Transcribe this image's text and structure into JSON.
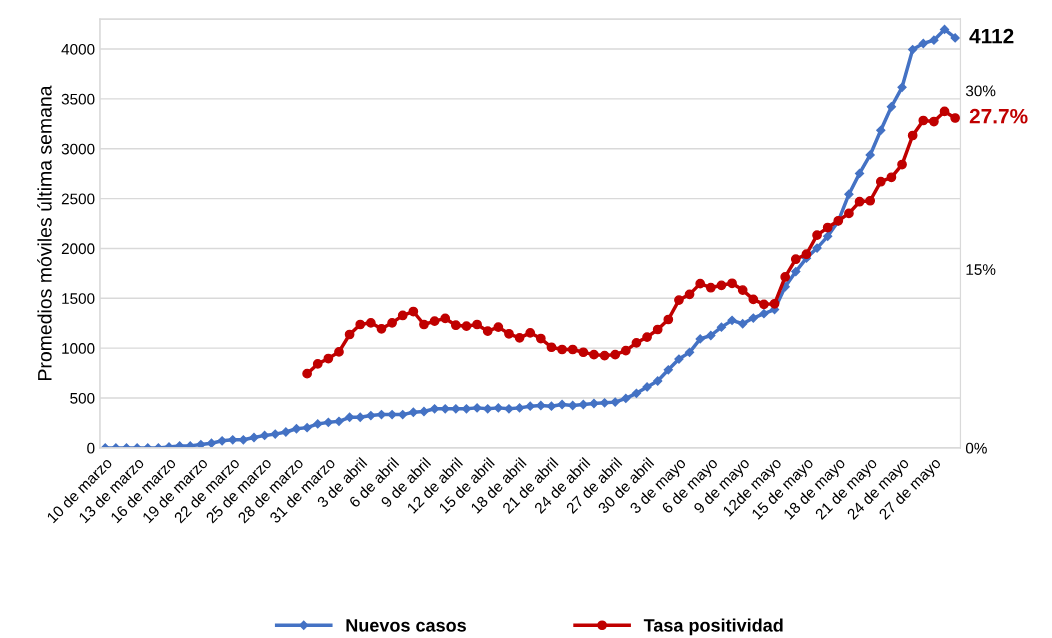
{
  "chart_data": {
    "type": "line",
    "ylabel": "Promedios móviles última semana",
    "categories": [
      "10 de marzo",
      null,
      null,
      "13 de marzo",
      null,
      null,
      "16 de marzo",
      null,
      null,
      "19 de marzo",
      null,
      null,
      "22 de marzo",
      null,
      null,
      "25 de marzo",
      null,
      null,
      "28 de marzo",
      null,
      null,
      "31 de marzo",
      null,
      null,
      "3 de abril",
      null,
      null,
      "6 de abril",
      null,
      null,
      "9 de abril",
      null,
      null,
      "12 de abril",
      null,
      null,
      "15 de abril",
      null,
      null,
      "18 de abril",
      null,
      null,
      "21 de abril",
      null,
      null,
      "24 de abril",
      null,
      null,
      "27 de abril",
      null,
      null,
      "30 de abril",
      null,
      null,
      "3 de mayo",
      null,
      null,
      "6 de mayo",
      null,
      null,
      "9 de mayo",
      null,
      null,
      "12de mayo",
      null,
      null,
      "15 de mayo",
      null,
      null,
      "18 de mayo",
      null,
      null,
      "21 de mayo",
      null,
      null,
      "24 de mayo",
      null,
      null,
      "27 de mayo",
      null,
      null
    ],
    "series": [
      {
        "name": "Nuevos casos",
        "color": "#4472c4",
        "marker": "diamond",
        "values": [
          0,
          0,
          0,
          0,
          0,
          0,
          10,
          20,
          20,
          33,
          47,
          71,
          81,
          81,
          104,
          125,
          138,
          159,
          192,
          203,
          240,
          256,
          266,
          307,
          307,
          324,
          334,
          334,
          334,
          357,
          365,
          392,
          392,
          392,
          392,
          401,
          392,
          401,
          392,
          401,
          418,
          425,
          418,
          435,
          425,
          435,
          445,
          452,
          459,
          496,
          547,
          611,
          671,
          783,
          891,
          958,
          1093,
          1127,
          1211,
          1279,
          1245,
          1302,
          1346,
          1387,
          1616,
          1768,
          1903,
          2004,
          2122,
          2274,
          2544,
          2753,
          2938,
          3185,
          3421,
          3616,
          3995,
          4056,
          4089,
          4197,
          4112
        ],
        "value_labels": [
          null,
          null,
          null,
          null,
          null,
          null,
          null,
          null,
          null,
          null,
          null,
          null,
          null,
          null,
          null,
          null,
          null,
          null,
          null,
          null,
          null,
          null,
          null,
          null,
          null,
          null,
          null,
          null,
          null,
          null,
          null,
          null,
          null,
          null,
          null,
          null,
          null,
          null,
          null,
          null,
          null,
          null,
          null,
          null,
          null,
          null,
          null,
          null,
          null,
          null,
          null,
          null,
          null,
          null,
          null,
          null,
          null,
          null,
          null,
          null,
          null,
          null,
          null,
          null,
          null,
          null,
          null,
          null,
          null,
          null,
          null,
          null,
          null,
          null,
          null,
          null,
          null,
          null,
          null,
          null,
          "4112"
        ]
      },
      {
        "name": "Tasa positividad",
        "color": "#c00000",
        "marker": "circle",
        "axis": "y2",
        "values": [
          null,
          null,
          null,
          null,
          null,
          null,
          null,
          null,
          null,
          null,
          null,
          null,
          null,
          null,
          null,
          null,
          null,
          null,
          null,
          6.23,
          7.05,
          7.5,
          8.06,
          9.52,
          10.36,
          10.5,
          10.0,
          10.5,
          11.12,
          11.45,
          10.36,
          10.64,
          10.87,
          10.3,
          10.22,
          10.36,
          9.8,
          10.14,
          9.58,
          9.24,
          9.66,
          9.18,
          8.45,
          8.26,
          8.26,
          8.03,
          7.83,
          7.75,
          7.83,
          8.17,
          8.82,
          9.3,
          9.94,
          10.78,
          12.41,
          12.89,
          13.79,
          13.45,
          13.65,
          13.82,
          13.25,
          12.47,
          12.05,
          12.1,
          14.35,
          15.84,
          16.26,
          17.86,
          18.5,
          19.07,
          19.69,
          20.67,
          20.75,
          22.35,
          22.72,
          23.79,
          26.23,
          27.49,
          27.4,
          28.25,
          27.7
        ],
        "value_labels": [
          null,
          null,
          null,
          null,
          null,
          null,
          null,
          null,
          null,
          null,
          null,
          null,
          null,
          null,
          null,
          null,
          null,
          null,
          null,
          null,
          null,
          null,
          null,
          null,
          null,
          null,
          null,
          null,
          null,
          null,
          null,
          null,
          null,
          null,
          null,
          null,
          null,
          null,
          null,
          null,
          null,
          null,
          null,
          null,
          null,
          null,
          null,
          null,
          null,
          null,
          null,
          null,
          null,
          null,
          null,
          null,
          null,
          null,
          null,
          null,
          null,
          null,
          null,
          null,
          null,
          null,
          null,
          null,
          null,
          null,
          null,
          null,
          null,
          null,
          null,
          null,
          null,
          null,
          null,
          null,
          "27.7%"
        ]
      }
    ],
    "ylim": [
      0,
      4300
    ],
    "yticks": [
      0,
      500,
      1000,
      1500,
      2000,
      2500,
      3000,
      3500,
      4000
    ],
    "y2lim": [
      0,
      36
    ],
    "y2ticks": [
      {
        "value": 0,
        "label": "0%"
      },
      {
        "value": 15,
        "label": "15%"
      },
      {
        "value": 30,
        "label": "30%"
      }
    ],
    "grid": "y",
    "legend": "bottom",
    "line_style": "solid"
  }
}
